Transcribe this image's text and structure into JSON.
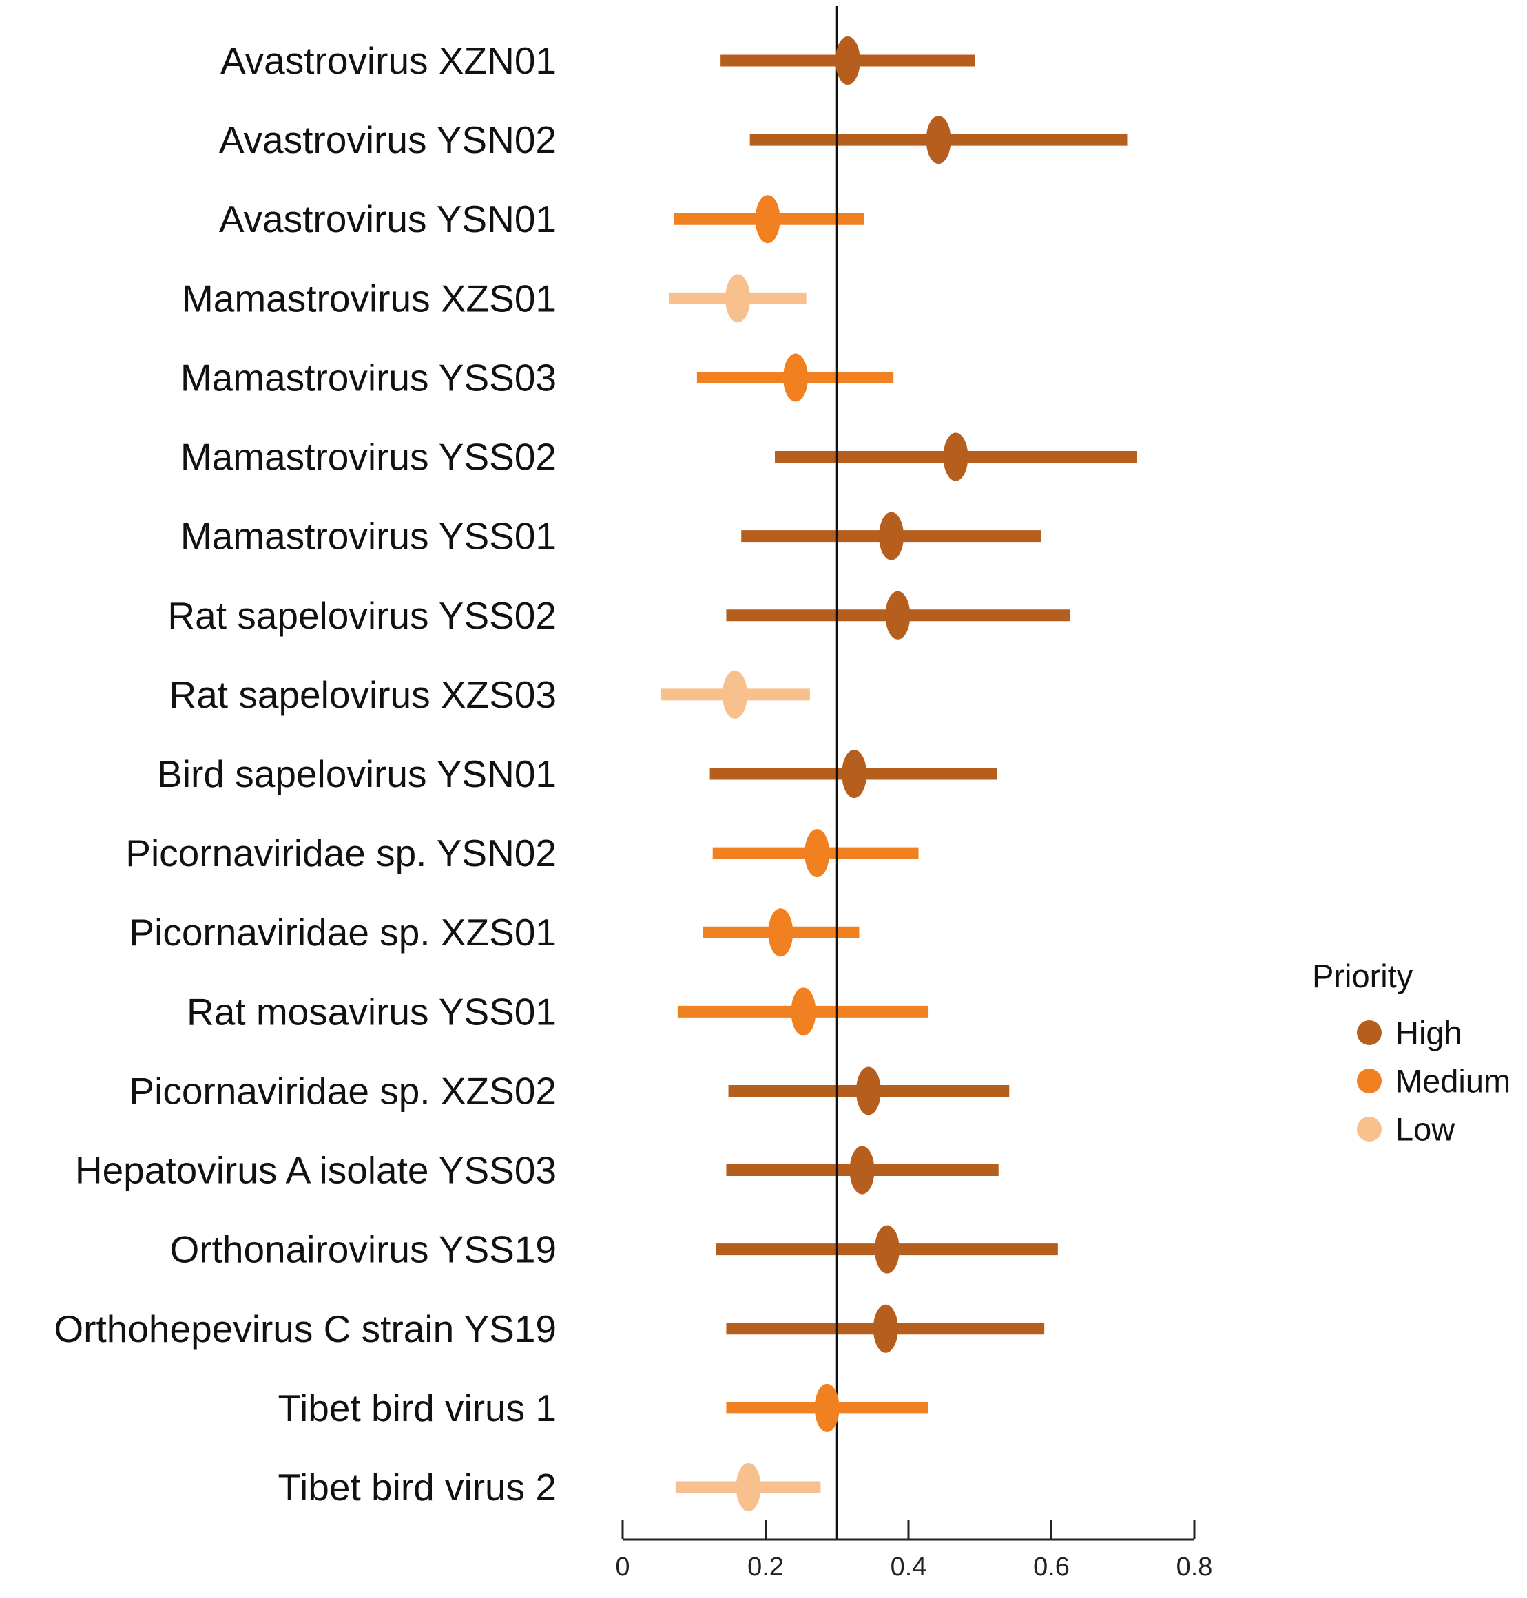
{
  "chart_data": {
    "type": "forest",
    "title": "",
    "xlabel": "",
    "ylabel": "",
    "xlim": [
      0,
      0.8
    ],
    "x_ticks": [
      0,
      0.2,
      0.4,
      0.6,
      0.8
    ],
    "x_tick_labels": [
      "0",
      "0.2",
      "0.4",
      "0.6",
      "0.8"
    ],
    "reference_line": 0.3,
    "legend": {
      "title": "Priority",
      "placement": "right",
      "items": [
        {
          "label": "High",
          "color": "#B55E1E"
        },
        {
          "label": "Medium",
          "color": "#F08020"
        },
        {
          "label": "Low",
          "color": "#F7C08D"
        }
      ]
    },
    "rows": [
      {
        "label": "Avastrovirus XZN01",
        "value": 0.315,
        "low": 0.137,
        "high": 0.493,
        "priority": "High"
      },
      {
        "label": "Avastrovirus YSN02",
        "value": 0.442,
        "low": 0.178,
        "high": 0.706,
        "priority": "High"
      },
      {
        "label": "Avastrovirus YSN01",
        "value": 0.203,
        "low": 0.072,
        "high": 0.338,
        "priority": "Medium"
      },
      {
        "label": "Mamastrovirus XZS01",
        "value": 0.161,
        "low": 0.065,
        "high": 0.257,
        "priority": "Low"
      },
      {
        "label": "Mamastrovirus YSS03",
        "value": 0.242,
        "low": 0.104,
        "high": 0.379,
        "priority": "Medium"
      },
      {
        "label": "Mamastrovirus YSS02",
        "value": 0.466,
        "low": 0.213,
        "high": 0.72,
        "priority": "High"
      },
      {
        "label": "Mamastrovirus YSS01",
        "value": 0.376,
        "low": 0.166,
        "high": 0.586,
        "priority": "High"
      },
      {
        "label": "Rat sapelovirus YSS02",
        "value": 0.385,
        "low": 0.145,
        "high": 0.626,
        "priority": "High"
      },
      {
        "label": "Rat sapelovirus XZS03",
        "value": 0.157,
        "low": 0.054,
        "high": 0.262,
        "priority": "Low"
      },
      {
        "label": "Bird sapelovirus YSN01",
        "value": 0.324,
        "low": 0.122,
        "high": 0.524,
        "priority": "High"
      },
      {
        "label": "Picornaviridae sp. YSN02",
        "value": 0.272,
        "low": 0.126,
        "high": 0.414,
        "priority": "Medium"
      },
      {
        "label": "Picornaviridae sp. XZS01",
        "value": 0.221,
        "low": 0.112,
        "high": 0.331,
        "priority": "Medium"
      },
      {
        "label": "Rat mosavirus  YSS01",
        "value": 0.253,
        "low": 0.077,
        "high": 0.428,
        "priority": "Medium"
      },
      {
        "label": "Picornaviridae sp. XZS02",
        "value": 0.344,
        "low": 0.148,
        "high": 0.541,
        "priority": "High"
      },
      {
        "label": "Hepatovirus A isolate YSS03",
        "value": 0.335,
        "low": 0.145,
        "high": 0.526,
        "priority": "High"
      },
      {
        "label": "Orthonairovirus YSS19",
        "value": 0.37,
        "low": 0.131,
        "high": 0.609,
        "priority": "High"
      },
      {
        "label": "Orthohepevirus C strain YS19",
        "value": 0.368,
        "low": 0.145,
        "high": 0.59,
        "priority": "High"
      },
      {
        "label": "Tibet bird virus 1",
        "value": 0.286,
        "low": 0.145,
        "high": 0.427,
        "priority": "Medium"
      },
      {
        "label": "Tibet bird virus 2",
        "value": 0.176,
        "low": 0.074,
        "high": 0.277,
        "priority": "Low"
      }
    ]
  }
}
